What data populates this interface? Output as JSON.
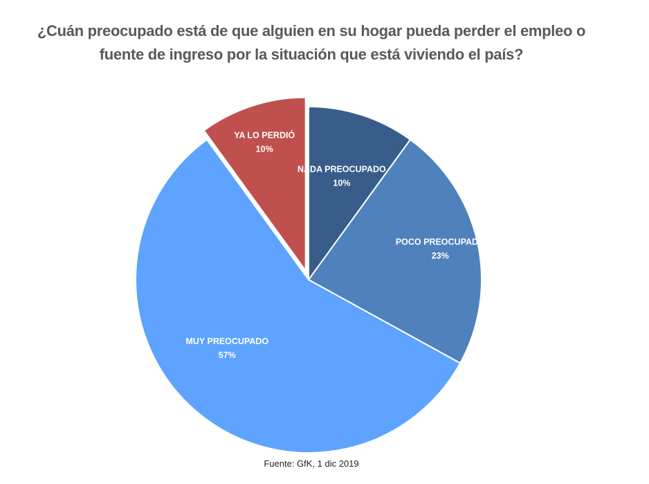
{
  "title": "¿Cuán preocupado está de que alguien en su hogar pueda perder el empleo o fuente de ingreso por la situación que está viviendo el país?",
  "source": "Fuente: GfK, 1 dic 2019",
  "chart_data": {
    "type": "pie",
    "title": "¿Cuán preocupado está de que alguien en su hogar pueda perder el empleo o fuente de ingreso por la situación que está viviendo el país?",
    "slices": [
      {
        "label": "NADA PREOCUPADO",
        "value": 10,
        "display": "10%",
        "color": "#385D8A",
        "exploded": false
      },
      {
        "label": "POCO PREOCUPADO",
        "value": 23,
        "display": "23%",
        "color": "#4F81BD",
        "exploded": false
      },
      {
        "label": "MUY PREOCUPADO",
        "value": 57,
        "display": "57%",
        "color": "#5EA3FF",
        "exploded": false
      },
      {
        "label": "YA LO PERDIÓ",
        "value": 10,
        "display": "10%",
        "color": "#C0504D",
        "exploded": true
      }
    ],
    "start_angle": "12 o'clock, clockwise",
    "legend": "none",
    "data_labels": "inside slices"
  }
}
